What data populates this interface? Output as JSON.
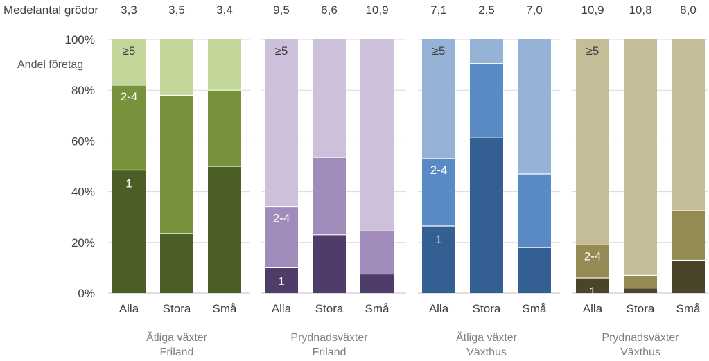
{
  "chart_data": {
    "type": "bar",
    "stacked": true,
    "ylabel": "Andel företag",
    "yticks": [
      "0%",
      "20%",
      "40%",
      "60%",
      "80%",
      "100%"
    ],
    "ylim": [
      0,
      100
    ],
    "mean_label": "Medelantal grödor",
    "segment_names": [
      "1",
      "2-4",
      "≥5"
    ],
    "grid": true,
    "groups": [
      {
        "name_line1": "Ätliga växter",
        "name_line2": "Friland",
        "colors": [
          "#4b5e26",
          "#76933c",
          "#c4d79b"
        ],
        "bars": [
          {
            "category": "Alla",
            "mean": "3,3",
            "values": [
              48.5,
              33.5,
              18.0
            ]
          },
          {
            "category": "Stora",
            "mean": "3,5",
            "values": [
              23.5,
              54.5,
              22.0
            ]
          },
          {
            "category": "Små",
            "mean": "3,4",
            "values": [
              50.0,
              30.0,
              20.0
            ]
          }
        ]
      },
      {
        "name_line1": "Prydnadsväxter",
        "name_line2": "Friland",
        "colors": [
          "#503c68",
          "#a18bba",
          "#ccc0da"
        ],
        "bars": [
          {
            "category": "Alla",
            "mean": "9,5",
            "values": [
              10.0,
              24.0,
              66.0
            ]
          },
          {
            "category": "Stora",
            "mean": "6,6",
            "values": [
              23.0,
              30.5,
              46.5
            ]
          },
          {
            "category": "Små",
            "mean": "10,9",
            "values": [
              7.5,
              17.0,
              75.5
            ]
          }
        ]
      },
      {
        "name_line1": "Ätliga växter",
        "name_line2": "Växthus",
        "colors": [
          "#335f92",
          "#5a8ac6",
          "#95b3d7"
        ],
        "bars": [
          {
            "category": "Alla",
            "mean": "7,1",
            "values": [
              26.5,
              26.5,
              47.0
            ]
          },
          {
            "category": "Stora",
            "mean": "2,5",
            "values": [
              61.5,
              29.0,
              9.5
            ]
          },
          {
            "category": "Små",
            "mean": "7,0",
            "values": [
              18.0,
              29.0,
              53.0
            ]
          }
        ]
      },
      {
        "name_line1": "Prydnadsväxter",
        "name_line2": "Växthus",
        "colors": [
          "#4a4529",
          "#948a54",
          "#c4bd97"
        ],
        "bars": [
          {
            "category": "Alla",
            "mean": "10,9",
            "values": [
              6.0,
              13.0,
              81.0
            ]
          },
          {
            "category": "Stora",
            "mean": "10,8",
            "values": [
              2.0,
              5.0,
              93.0
            ]
          },
          {
            "category": "Små",
            "mean": "8,0",
            "values": [
              13.0,
              19.5,
              67.5
            ]
          }
        ]
      }
    ]
  }
}
